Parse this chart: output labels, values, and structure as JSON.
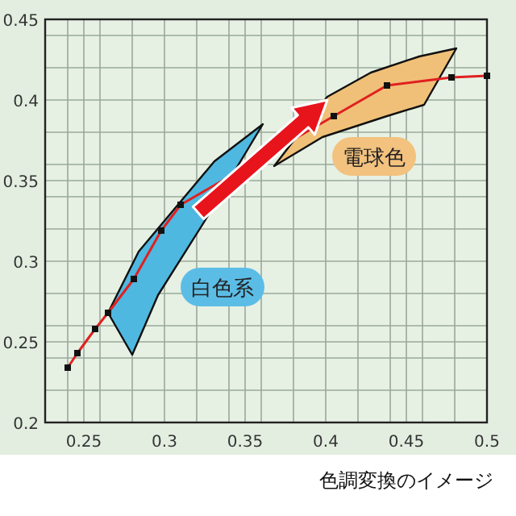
{
  "chart_data": {
    "type": "line",
    "xlim": [
      0.226,
      0.5
    ],
    "ylim": [
      0.2,
      0.45
    ],
    "xticks": [
      {
        "value": 0.24,
        "label": null
      },
      0.25,
      {
        "value": 0.26,
        "label": null
      },
      {
        "value": 0.28,
        "label": null
      },
      0.3,
      {
        "value": 0.32,
        "label": null
      },
      {
        "value": 0.34,
        "label": null
      },
      0.35,
      {
        "value": 0.36,
        "label": null
      },
      {
        "value": 0.38,
        "label": null
      },
      0.4,
      {
        "value": 0.42,
        "label": null
      },
      {
        "value": 0.44,
        "label": null
      },
      0.45,
      {
        "value": 0.46,
        "label": null
      },
      {
        "value": 0.48,
        "label": null
      },
      0.5
    ],
    "yticks": [
      0.2,
      {
        "value": 0.22,
        "label": null
      },
      {
        "value": 0.24,
        "label": null
      },
      0.25,
      {
        "value": 0.26,
        "label": null
      },
      {
        "value": 0.28,
        "label": null
      },
      0.3,
      {
        "value": 0.32,
        "label": null
      },
      {
        "value": 0.34,
        "label": null
      },
      0.35,
      {
        "value": 0.36,
        "label": null
      },
      {
        "value": 0.38,
        "label": null
      },
      0.4,
      {
        "value": 0.42,
        "label": null
      },
      {
        "value": 0.44,
        "label": null
      },
      0.45
    ],
    "grid": true,
    "series": [
      {
        "type": "area",
        "color": "#4fb8e0",
        "x": [
          0.28,
          0.265,
          0.284,
          0.331,
          0.361,
          0.325,
          0.296,
          0.28
        ],
        "values": [
          0.242,
          0.268,
          0.306,
          0.362,
          0.385,
          0.325,
          0.279,
          0.242
        ]
      },
      {
        "type": "area",
        "color": "#f0c078",
        "x": [
          0.368,
          0.401,
          0.428,
          0.458,
          0.481,
          0.461,
          0.438,
          0.398,
          0.368
        ],
        "values": [
          0.359,
          0.402,
          0.417,
          0.427,
          0.432,
          0.397,
          0.39,
          0.377,
          0.359
        ]
      },
      {
        "color": "#e02020",
        "marker": "square",
        "x": [
          0.24,
          0.246,
          0.257,
          0.265,
          0.281,
          0.298,
          0.31,
          0.405,
          0.438,
          0.478,
          0.5
        ],
        "values": [
          0.234,
          0.243,
          0.258,
          0.268,
          0.289,
          0.319,
          0.335,
          0.39,
          0.409,
          0.414,
          0.415
        ]
      }
    ],
    "annotations": [
      "白色系",
      "電球色",
      "色調変換のイメージ"
    ]
  }
}
